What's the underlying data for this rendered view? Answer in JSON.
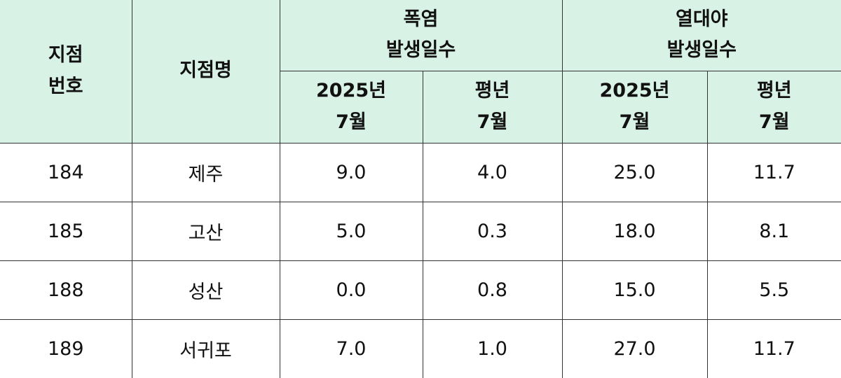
{
  "header": {
    "station_no": [
      "지점",
      "번호"
    ],
    "station_name": "지점명",
    "heatwave": [
      "폭염",
      "발생일수"
    ],
    "tropical_night": [
      "열대야",
      "발생일수"
    ],
    "col_2025": [
      "2025년",
      "7월"
    ],
    "col_normal": [
      "평년",
      "7월"
    ]
  },
  "rows": [
    {
      "no": "184",
      "name": "제주",
      "hw_2025": "9.0",
      "hw_normal": "4.0",
      "tn_2025": "25.0",
      "tn_normal": "11.7"
    },
    {
      "no": "185",
      "name": "고산",
      "hw_2025": "5.0",
      "hw_normal": "0.3",
      "tn_2025": "18.0",
      "tn_normal": "8.1"
    },
    {
      "no": "188",
      "name": "성산",
      "hw_2025": "0.0",
      "hw_normal": "0.8",
      "tn_2025": "15.0",
      "tn_normal": "5.5"
    },
    {
      "no": "189",
      "name": "서귀포",
      "hw_2025": "7.0",
      "hw_normal": "1.0",
      "tn_2025": "27.0",
      "tn_normal": "11.7"
    }
  ]
}
